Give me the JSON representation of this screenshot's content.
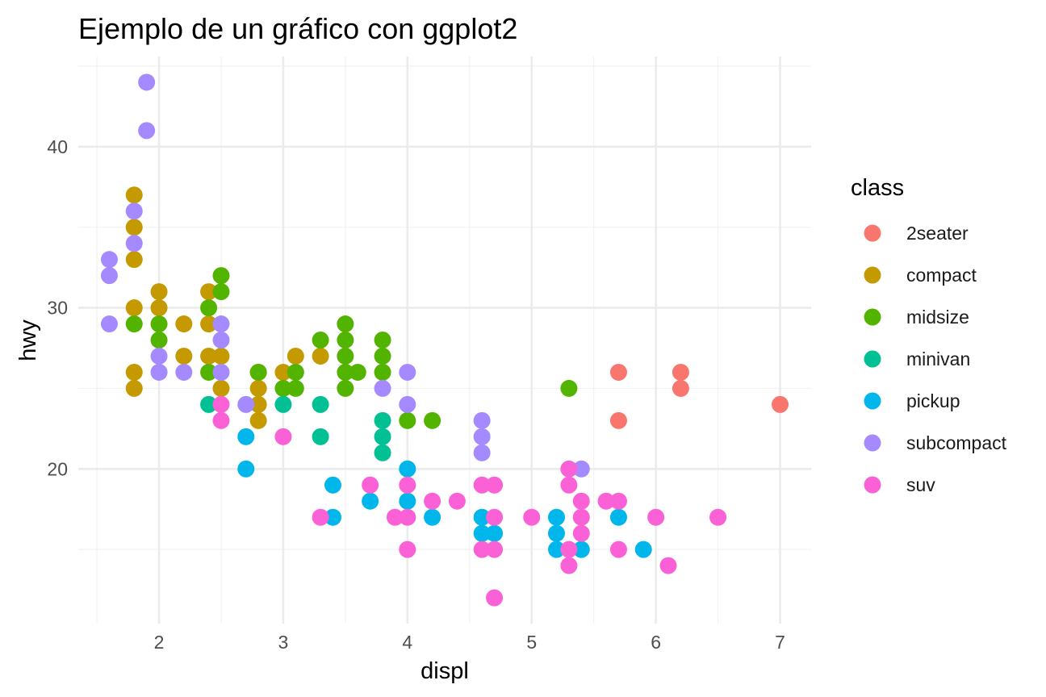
{
  "chart_data": {
    "type": "scatter",
    "title": "Ejemplo de un gráfico con ggplot2",
    "xlabel": "displ",
    "ylabel": "hwy",
    "xlim": [
      1.35,
      7.25
    ],
    "ylim": [
      10.4,
      45.6
    ],
    "x_ticks": [
      2,
      3,
      4,
      5,
      6,
      7
    ],
    "y_ticks": [
      20,
      30,
      40
    ],
    "grid": true,
    "legend": {
      "title": "class",
      "position": "right"
    },
    "series": [
      {
        "name": "2seater",
        "color": "#F8766D",
        "points": [
          [
            5.7,
            26
          ],
          [
            5.7,
            23
          ],
          [
            6.2,
            26
          ],
          [
            6.2,
            25
          ],
          [
            7.0,
            24
          ]
        ]
      },
      {
        "name": "compact",
        "color": "#C49A00",
        "points": [
          [
            1.8,
            37
          ],
          [
            1.8,
            35
          ],
          [
            1.8,
            33
          ],
          [
            1.8,
            30
          ],
          [
            1.8,
            26
          ],
          [
            1.8,
            25
          ],
          [
            2.0,
            31
          ],
          [
            2.0,
            30
          ],
          [
            2.2,
            29
          ],
          [
            2.2,
            27
          ],
          [
            2.4,
            31
          ],
          [
            2.4,
            29
          ],
          [
            2.4,
            27
          ],
          [
            2.5,
            27
          ],
          [
            2.5,
            25
          ],
          [
            2.8,
            26
          ],
          [
            2.8,
            25
          ],
          [
            2.8,
            24
          ],
          [
            2.8,
            23
          ],
          [
            3.0,
            26
          ],
          [
            3.1,
            27
          ],
          [
            3.3,
            27
          ]
        ]
      },
      {
        "name": "midsize",
        "color": "#53B400",
        "points": [
          [
            1.8,
            29
          ],
          [
            2.0,
            29
          ],
          [
            2.0,
            28
          ],
          [
            2.4,
            30
          ],
          [
            2.4,
            26
          ],
          [
            2.5,
            32
          ],
          [
            2.5,
            31
          ],
          [
            2.8,
            26
          ],
          [
            3.0,
            25
          ],
          [
            3.1,
            26
          ],
          [
            3.1,
            25
          ],
          [
            3.3,
            28
          ],
          [
            3.5,
            29
          ],
          [
            3.5,
            28
          ],
          [
            3.5,
            27
          ],
          [
            3.5,
            26
          ],
          [
            3.5,
            25
          ],
          [
            3.6,
            26
          ],
          [
            3.8,
            28
          ],
          [
            3.8,
            27
          ],
          [
            3.8,
            26
          ],
          [
            4.0,
            23
          ],
          [
            4.2,
            23
          ],
          [
            5.3,
            25
          ]
        ]
      },
      {
        "name": "minivan",
        "color": "#00C094",
        "points": [
          [
            2.4,
            24
          ],
          [
            3.0,
            24
          ],
          [
            3.3,
            24
          ],
          [
            3.3,
            22
          ],
          [
            3.8,
            23
          ],
          [
            3.8,
            22
          ],
          [
            3.8,
            21
          ]
        ]
      },
      {
        "name": "pickup",
        "color": "#00B6EB",
        "points": [
          [
            2.7,
            22
          ],
          [
            2.7,
            20
          ],
          [
            3.4,
            19
          ],
          [
            3.4,
            17
          ],
          [
            3.7,
            18
          ],
          [
            4.0,
            20
          ],
          [
            4.0,
            18
          ],
          [
            4.2,
            17
          ],
          [
            4.6,
            17
          ],
          [
            4.6,
            16
          ],
          [
            4.7,
            16
          ],
          [
            5.2,
            17
          ],
          [
            5.2,
            16
          ],
          [
            5.2,
            15
          ],
          [
            5.4,
            15
          ],
          [
            5.7,
            17
          ],
          [
            5.9,
            15
          ]
        ]
      },
      {
        "name": "subcompact",
        "color": "#A58AFF",
        "points": [
          [
            1.6,
            33
          ],
          [
            1.6,
            32
          ],
          [
            1.6,
            29
          ],
          [
            1.8,
            36
          ],
          [
            1.8,
            34
          ],
          [
            1.9,
            44
          ],
          [
            1.9,
            41
          ],
          [
            2.0,
            27
          ],
          [
            2.0,
            26
          ],
          [
            2.2,
            26
          ],
          [
            2.5,
            29
          ],
          [
            2.5,
            28
          ],
          [
            2.5,
            26
          ],
          [
            2.7,
            24
          ],
          [
            3.8,
            25
          ],
          [
            4.0,
            26
          ],
          [
            4.0,
            24
          ],
          [
            4.6,
            23
          ],
          [
            4.6,
            22
          ],
          [
            4.6,
            21
          ],
          [
            5.4,
            20
          ]
        ]
      },
      {
        "name": "suv",
        "color": "#FB61D7",
        "points": [
          [
            2.5,
            24
          ],
          [
            2.5,
            23
          ],
          [
            3.0,
            22
          ],
          [
            3.3,
            17
          ],
          [
            3.7,
            19
          ],
          [
            3.9,
            17
          ],
          [
            4.0,
            19
          ],
          [
            4.0,
            17
          ],
          [
            4.0,
            15
          ],
          [
            4.2,
            18
          ],
          [
            4.4,
            18
          ],
          [
            4.6,
            19
          ],
          [
            4.6,
            15
          ],
          [
            4.7,
            19
          ],
          [
            4.7,
            17
          ],
          [
            4.7,
            15
          ],
          [
            4.7,
            12
          ],
          [
            5.0,
            17
          ],
          [
            5.3,
            20
          ],
          [
            5.3,
            19
          ],
          [
            5.3,
            15
          ],
          [
            5.3,
            14
          ],
          [
            5.4,
            18
          ],
          [
            5.4,
            17
          ],
          [
            5.4,
            16
          ],
          [
            5.6,
            18
          ],
          [
            5.7,
            18
          ],
          [
            5.7,
            15
          ],
          [
            6.0,
            17
          ],
          [
            6.1,
            14
          ],
          [
            6.5,
            17
          ]
        ]
      }
    ]
  }
}
